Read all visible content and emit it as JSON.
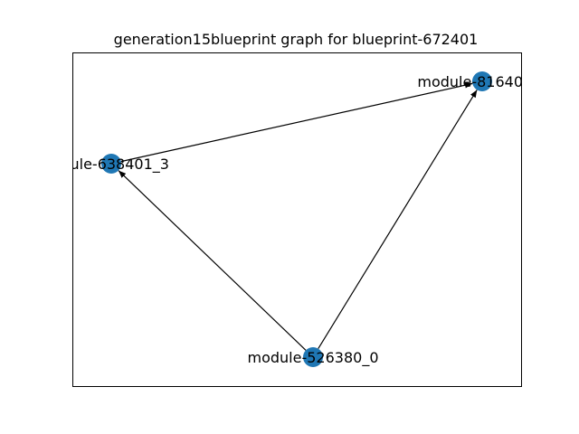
{
  "figure": {
    "title": "generation15blueprint graph for blueprint-672401"
  },
  "colors": {
    "node": "#1f77b4",
    "edge": "#000000",
    "frame": "#000000",
    "background": "#ffffff"
  },
  "graph": {
    "type": "directed",
    "nodes": [
      {
        "id": "module-816401_1",
        "label": "module-81640"
      },
      {
        "id": "module-638401_3",
        "label": "lule-638401_3"
      },
      {
        "id": "module-526380_0",
        "label": "module-526380_0"
      }
    ],
    "edges": [
      {
        "from": "module-638401_3",
        "to": "module-816401_1"
      },
      {
        "from": "module-526380_0",
        "to": "module-638401_3"
      },
      {
        "from": "module-526380_0",
        "to": "module-816401_1"
      }
    ]
  }
}
